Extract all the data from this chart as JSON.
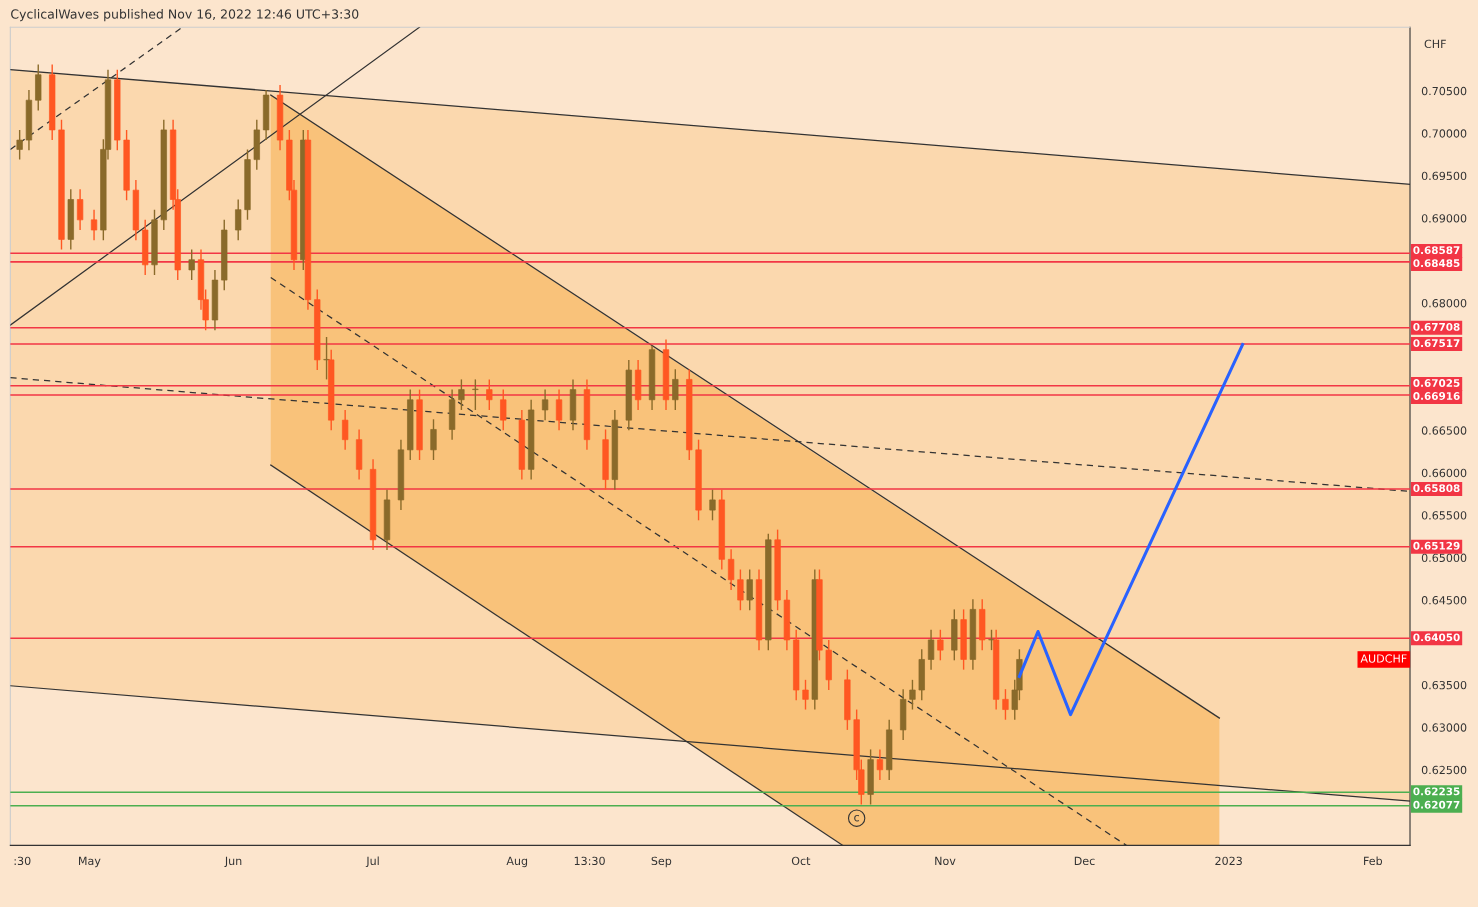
{
  "chart_data": {
    "type": "candlestick",
    "title": "CyclicalWaves published Nov 16, 2022 12:46 UTC+3:30",
    "ylabel": "CHF",
    "x": [
      "2022-04-16",
      "2022-04-18",
      "2022-04-20",
      "2022-04-23",
      "2022-04-25",
      "2022-04-27",
      "2022-04-29",
      "2022-05-02",
      "2022-05-04",
      "2022-05-05",
      "2022-05-07",
      "2022-05-09",
      "2022-05-11",
      "2022-05-13",
      "2022-05-15",
      "2022-05-17",
      "2022-05-19",
      "2022-05-20",
      "2022-05-23",
      "2022-05-25",
      "2022-05-26",
      "2022-05-28",
      "2022-05-30",
      "2022-06-02",
      "2022-06-04",
      "2022-06-06",
      "2022-06-08",
      "2022-06-11",
      "2022-06-13",
      "2022-06-14",
      "2022-06-16",
      "2022-06-17",
      "2022-06-19",
      "2022-06-21",
      "2022-06-22",
      "2022-06-25",
      "2022-06-28",
      "2022-07-01",
      "2022-07-04",
      "2022-07-07",
      "2022-07-09",
      "2022-07-11",
      "2022-07-14",
      "2022-07-18",
      "2022-07-20",
      "2022-07-23",
      "2022-07-26",
      "2022-07-29",
      "2022-08-02",
      "2022-08-04",
      "2022-08-07",
      "2022-08-10",
      "2022-08-13",
      "2022-08-16",
      "2022-08-20",
      "2022-08-22",
      "2022-08-25",
      "2022-08-27",
      "2022-08-30",
      "2022-09-02",
      "2022-09-04",
      "2022-09-07",
      "2022-09-09",
      "2022-09-12",
      "2022-09-14",
      "2022-09-16",
      "2022-09-18",
      "2022-09-20",
      "2022-09-22",
      "2022-09-24",
      "2022-09-26",
      "2022-09-28",
      "2022-09-30",
      "2022-10-02",
      "2022-10-04",
      "2022-10-05",
      "2022-10-07",
      "2022-10-11",
      "2022-10-13",
      "2022-10-14",
      "2022-10-16",
      "2022-10-18",
      "2022-10-20",
      "2022-10-23",
      "2022-10-25",
      "2022-10-27",
      "2022-10-29",
      "2022-10-31",
      "2022-11-03",
      "2022-11-05",
      "2022-11-07",
      "2022-11-09",
      "2022-11-11",
      "2022-11-12",
      "2022-11-14",
      "2022-11-16",
      "2022-11-17"
    ],
    "ohlc": [
      [
        0.6981,
        0.7004,
        0.6969,
        0.6992
      ],
      [
        0.6992,
        0.7051,
        0.698,
        0.7039
      ],
      [
        0.7039,
        0.7081,
        0.7027,
        0.7069
      ],
      [
        0.7069,
        0.7081,
        0.6992,
        0.7004
      ],
      [
        0.7004,
        0.7016,
        0.6863,
        0.6875
      ],
      [
        0.6875,
        0.6934,
        0.6863,
        0.6922
      ],
      [
        0.6922,
        0.6934,
        0.6886,
        0.6898
      ],
      [
        0.6898,
        0.691,
        0.6874,
        0.6886
      ],
      [
        0.6886,
        0.6993,
        0.6874,
        0.6981
      ],
      [
        0.6981,
        0.7075,
        0.6969,
        0.7063
      ],
      [
        0.7063,
        0.7075,
        0.698,
        0.6992
      ],
      [
        0.6992,
        0.7004,
        0.6921,
        0.6933
      ],
      [
        0.6933,
        0.6945,
        0.6874,
        0.6886
      ],
      [
        0.6886,
        0.6898,
        0.6833,
        0.6845
      ],
      [
        0.6845,
        0.691,
        0.6833,
        0.6898
      ],
      [
        0.6898,
        0.7016,
        0.6886,
        0.7004
      ],
      [
        0.7004,
        0.7016,
        0.691,
        0.6922
      ],
      [
        0.6922,
        0.6934,
        0.6827,
        0.6839
      ],
      [
        0.6839,
        0.6863,
        0.6827,
        0.6851
      ],
      [
        0.6851,
        0.6863,
        0.6792,
        0.6804
      ],
      [
        0.6804,
        0.6816,
        0.6768,
        0.678
      ],
      [
        0.678,
        0.6839,
        0.6768,
        0.6827
      ],
      [
        0.6827,
        0.6898,
        0.6815,
        0.6886
      ],
      [
        0.6886,
        0.6922,
        0.6874,
        0.691
      ],
      [
        0.691,
        0.6981,
        0.6898,
        0.6969
      ],
      [
        0.6969,
        0.7016,
        0.6957,
        0.7004
      ],
      [
        0.7004,
        0.7051,
        0.6992,
        0.7045
      ],
      [
        0.7045,
        0.7057,
        0.698,
        0.6992
      ],
      [
        0.6992,
        0.7004,
        0.6921,
        0.6933
      ],
      [
        0.6933,
        0.6945,
        0.6839,
        0.6851
      ],
      [
        0.6851,
        0.7004,
        0.6839,
        0.6992
      ],
      [
        0.6992,
        0.7004,
        0.6792,
        0.6804
      ],
      [
        0.6804,
        0.6816,
        0.6721,
        0.6733
      ],
      [
        0.6733,
        0.676,
        0.671,
        0.6733
      ],
      [
        0.6733,
        0.6745,
        0.665,
        0.6662
      ],
      [
        0.6662,
        0.6674,
        0.6627,
        0.6639
      ],
      [
        0.6639,
        0.6651,
        0.6592,
        0.6604
      ],
      [
        0.6604,
        0.6616,
        0.6509,
        0.6521
      ],
      [
        0.6521,
        0.658,
        0.6509,
        0.6568
      ],
      [
        0.6568,
        0.6639,
        0.6556,
        0.6627
      ],
      [
        0.6627,
        0.6698,
        0.6615,
        0.6686
      ],
      [
        0.6686,
        0.6698,
        0.6615,
        0.6627
      ],
      [
        0.6627,
        0.6663,
        0.6615,
        0.6651
      ],
      [
        0.6651,
        0.6698,
        0.6639,
        0.6686
      ],
      [
        0.6686,
        0.671,
        0.6674,
        0.6698
      ],
      [
        0.6698,
        0.671,
        0.6674,
        0.6698
      ],
      [
        0.6698,
        0.671,
        0.6674,
        0.6686
      ],
      [
        0.6686,
        0.6698,
        0.665,
        0.6662
      ],
      [
        0.6662,
        0.6674,
        0.6592,
        0.6604
      ],
      [
        0.6604,
        0.6686,
        0.6592,
        0.6674
      ],
      [
        0.6674,
        0.6698,
        0.6662,
        0.6686
      ],
      [
        0.6686,
        0.6698,
        0.665,
        0.6662
      ],
      [
        0.6662,
        0.671,
        0.665,
        0.6698
      ],
      [
        0.6698,
        0.671,
        0.6627,
        0.6639
      ],
      [
        0.6639,
        0.6651,
        0.658,
        0.6592
      ],
      [
        0.6592,
        0.6674,
        0.658,
        0.6662
      ],
      [
        0.6662,
        0.6733,
        0.665,
        0.6721
      ],
      [
        0.6721,
        0.6733,
        0.6674,
        0.6686
      ],
      [
        0.6686,
        0.675,
        0.6674,
        0.6745
      ],
      [
        0.6745,
        0.6757,
        0.6674,
        0.6686
      ],
      [
        0.6686,
        0.6722,
        0.6674,
        0.671
      ],
      [
        0.671,
        0.6722,
        0.6615,
        0.6627
      ],
      [
        0.6627,
        0.6639,
        0.6544,
        0.6556
      ],
      [
        0.6556,
        0.658,
        0.6544,
        0.6568
      ],
      [
        0.6568,
        0.658,
        0.6486,
        0.6498
      ],
      [
        0.6498,
        0.651,
        0.6462,
        0.6474
      ],
      [
        0.6474,
        0.6486,
        0.6438,
        0.645
      ],
      [
        0.645,
        0.6486,
        0.6438,
        0.6474
      ],
      [
        0.6474,
        0.6486,
        0.6391,
        0.6403
      ],
      [
        0.6403,
        0.6528,
        0.6391,
        0.6521
      ],
      [
        0.6521,
        0.6533,
        0.6438,
        0.645
      ],
      [
        0.645,
        0.6462,
        0.6391,
        0.6403
      ],
      [
        0.6403,
        0.6415,
        0.6332,
        0.6344
      ],
      [
        0.6344,
        0.6356,
        0.6321,
        0.6333
      ],
      [
        0.6333,
        0.6486,
        0.6321,
        0.6474
      ],
      [
        0.6474,
        0.6486,
        0.6379,
        0.6391
      ],
      [
        0.6391,
        0.6403,
        0.6344,
        0.6356
      ],
      [
        0.6356,
        0.6368,
        0.6297,
        0.6309
      ],
      [
        0.6309,
        0.6321,
        0.6238,
        0.625
      ],
      [
        0.625,
        0.6262,
        0.6209,
        0.6221
      ],
      [
        0.6221,
        0.6274,
        0.6209,
        0.6262
      ],
      [
        0.6262,
        0.6274,
        0.6238,
        0.625
      ],
      [
        0.625,
        0.6309,
        0.6238,
        0.6297
      ],
      [
        0.6297,
        0.6345,
        0.6285,
        0.6333
      ],
      [
        0.6333,
        0.6356,
        0.6321,
        0.6344
      ],
      [
        0.6344,
        0.6392,
        0.6332,
        0.638
      ],
      [
        0.638,
        0.6415,
        0.6368,
        0.6403
      ],
      [
        0.6403,
        0.6415,
        0.6379,
        0.6391
      ],
      [
        0.6391,
        0.6439,
        0.6379,
        0.6427
      ],
      [
        0.6427,
        0.6439,
        0.6368,
        0.638
      ],
      [
        0.638,
        0.6451,
        0.6368,
        0.6439
      ],
      [
        0.6439,
        0.6451,
        0.6391,
        0.6403
      ],
      [
        0.6403,
        0.6415,
        0.6391,
        0.6403
      ],
      [
        0.6403,
        0.6415,
        0.6321,
        0.6333
      ],
      [
        0.6333,
        0.6345,
        0.6309,
        0.6321
      ],
      [
        0.6321,
        0.6356,
        0.6309,
        0.6344
      ],
      [
        0.6344,
        0.6392,
        0.6332,
        0.638
      ]
    ],
    "series": [
      {
        "type": "line",
        "x": [
          "2022-04-14",
          "2023-02-09"
        ],
        "values": [
          0.7075,
          0.694
        ],
        "color": "#333333",
        "line_style": "solid"
      },
      {
        "type": "line",
        "x": [
          "2022-04-14",
          "2023-02-09"
        ],
        "values": [
          0.6349,
          0.6213
        ],
        "color": "#333333",
        "line_style": "solid"
      },
      {
        "type": "line",
        "x": [
          "2022-06-09",
          "2022-12-30"
        ],
        "values": [
          0.7045,
          0.6311
        ],
        "color": "#333333",
        "line_style": "solid"
      },
      {
        "type": "line",
        "x": [
          "2022-06-09",
          "2022-10-10"
        ],
        "values": [
          0.6609,
          0.6161
        ],
        "color": "#333333",
        "line_style": "solid"
      },
      {
        "type": "line",
        "x": [
          "2022-04-14",
          "2023-02-09"
        ],
        "values": [
          0.6712,
          0.6578
        ],
        "lower": [
          0.6349,
          0.6213
        ],
        "upper": [
          0.7075,
          0.694
        ],
        "color": "#333333",
        "line_style": "dashed"
      },
      {
        "type": "line",
        "x": [
          "2022-06-09",
          "2022-10-10",
          "2022-12-10",
          "2022-12-30"
        ],
        "values": [
          0.683,
          0.6382,
          0.6161,
          null
        ],
        "lower": [
          0.6609,
          0.6161,
          0.6161,
          0.6161
        ],
        "upper": [
          0.7045,
          0.6601,
          0.6383,
          0.6311
        ],
        "color": "#333333",
        "line_style": "dashed"
      },
      {
        "type": "line",
        "x": [
          "2022-04-14",
          "2022-07-11"
        ],
        "values": [
          0.6774,
          0.7125
        ],
        "color": "#333333",
        "line_style": "solid"
      },
      {
        "type": "line",
        "x": [
          "2022-04-14",
          "2022-05-21"
        ],
        "values": [
          0.6981,
          0.7125
        ],
        "color": "#333333",
        "line_style": "dashed"
      },
      {
        "type": "line",
        "x": [
          "2022-11-17",
          "2022-11-21",
          "2022-11-28",
          "2023-01-04"
        ],
        "values": [
          0.636,
          0.6413,
          0.6315,
          0.6751
        ],
        "color": "#2962ff",
        "line_style": "solid"
      }
    ],
    "ref_lines": [
      {
        "axis": "y",
        "value": 0.68587,
        "label": "0.68587",
        "color": "#f23645"
      },
      {
        "axis": "y",
        "value": 0.68485,
        "label": "0.68485",
        "color": "#f23645"
      },
      {
        "axis": "y",
        "value": 0.67708,
        "label": "0.67708",
        "color": "#f23645"
      },
      {
        "axis": "y",
        "value": 0.67517,
        "label": "0.67517",
        "color": "#f23645"
      },
      {
        "axis": "y",
        "value": 0.67025,
        "label": "0.67025",
        "color": "#f23645"
      },
      {
        "axis": "y",
        "value": 0.66916,
        "label": "0.66916",
        "color": "#f23645"
      },
      {
        "axis": "y",
        "value": 0.65808,
        "label": "0.65808",
        "color": "#f23645"
      },
      {
        "axis": "y",
        "value": 0.65129,
        "label": "0.65129",
        "color": "#f23645"
      },
      {
        "axis": "y",
        "value": 0.6405,
        "label": "0.64050",
        "color": "#f23645"
      },
      {
        "axis": "y",
        "value": 0.62235,
        "label": "0.62235",
        "color": "#4caf50"
      },
      {
        "axis": "y",
        "value": 0.62077,
        "label": "0.62077",
        "color": "#4caf50"
      }
    ],
    "annotations": [
      {
        "text": "c",
        "x": "2022-10-13",
        "y": 0.6193
      },
      "AUDCHF"
    ],
    "xlim": [
      "2022-04-14",
      "2023-02-09"
    ],
    "ylim": [
      0.6161,
      0.7125
    ],
    "xticks": [
      {
        "value": "2022-04-16T13:30",
        "label": ":30"
      },
      {
        "value": "2022-05-01",
        "label": "May"
      },
      {
        "value": "2022-06-01",
        "label": "Jun"
      },
      {
        "value": "2022-07-01",
        "label": "Jul"
      },
      {
        "value": "2022-08-01",
        "label": "Aug"
      },
      {
        "value": "2022-08-16T13:30",
        "label": "13:30"
      },
      {
        "value": "2022-09-01",
        "label": "Sep"
      },
      {
        "value": "2022-10-01",
        "label": "Oct"
      },
      {
        "value": "2022-11-01",
        "label": "Nov"
      },
      {
        "value": "2022-12-01",
        "label": "Dec"
      },
      {
        "value": "2023-01-01",
        "label": "2023"
      },
      {
        "value": "2023-02-01",
        "label": "Feb"
      }
    ],
    "yticks": [
      {
        "value": 0.625,
        "label": "0.62500"
      },
      {
        "value": 0.63,
        "label": "0.63000"
      },
      {
        "value": 0.635,
        "label": "0.63500"
      },
      {
        "value": 0.645,
        "label": "0.64500"
      },
      {
        "value": 0.65,
        "label": "0.65000"
      },
      {
        "value": 0.655,
        "label": "0.65500"
      },
      {
        "value": 0.66,
        "label": "0.66000"
      },
      {
        "value": 0.665,
        "label": "0.66500"
      },
      {
        "value": 0.68,
        "label": "0.68000"
      },
      {
        "value": 0.69,
        "label": "0.69000"
      },
      {
        "value": 0.695,
        "label": "0.69500"
      },
      {
        "value": 0.7,
        "label": "0.70000"
      },
      {
        "value": 0.705,
        "label": "0.70500"
      }
    ],
    "grid": false
  }
}
